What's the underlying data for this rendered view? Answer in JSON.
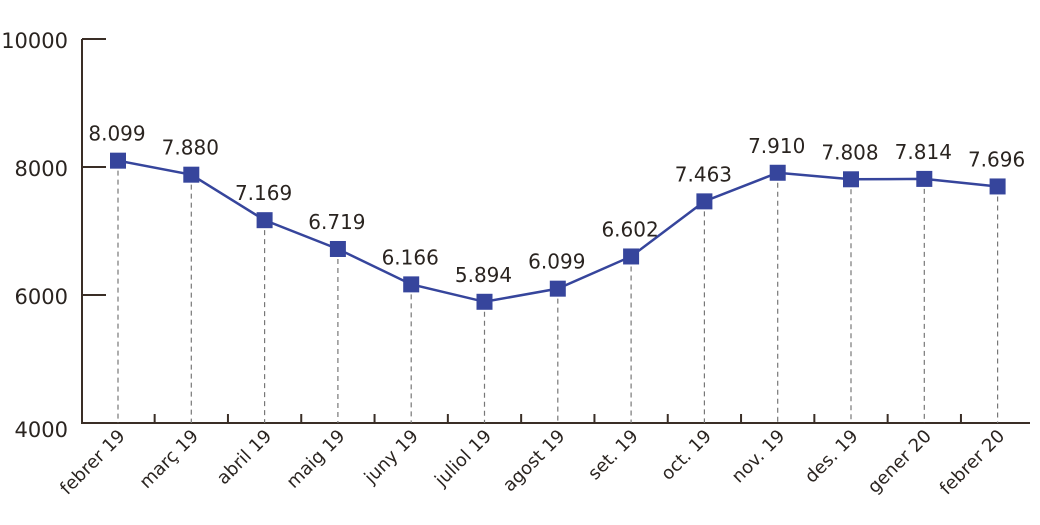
{
  "chart_data": {
    "type": "line",
    "title": "",
    "xlabel": "",
    "ylabel": "",
    "ylim": [
      4000,
      10000
    ],
    "yticks": [
      "4000",
      "6000",
      "8000",
      "10000"
    ],
    "grid": false,
    "categories": [
      "febrer 19",
      "març 19",
      "abril 19",
      "maig 19",
      "juny 19",
      "juliol 19",
      "agost 19",
      "set. 19",
      "oct. 19",
      "nov. 19",
      "des. 19",
      "gener 20",
      "febrer 20"
    ],
    "series": [
      {
        "name": "",
        "color": "#36459c",
        "values": [
          8099,
          7880,
          7169,
          6719,
          6166,
          5894,
          6099,
          6602,
          7463,
          7910,
          7808,
          7814,
          7696
        ],
        "labels": [
          "8.099",
          "7.880",
          "7.169",
          "6.719",
          "6.166",
          "5.894",
          "6.099",
          "6.602",
          "7.463",
          "7.910",
          "7.808",
          "7.814",
          "7.696"
        ]
      }
    ],
    "axis_color": "#3a2e26"
  }
}
